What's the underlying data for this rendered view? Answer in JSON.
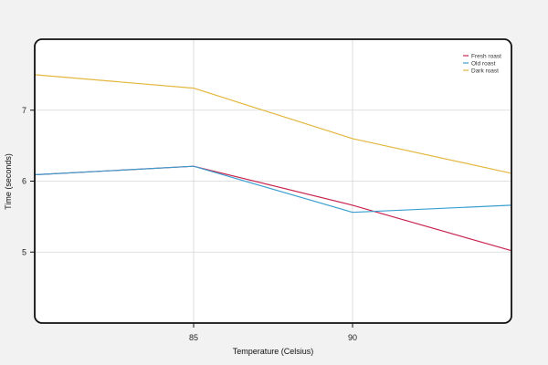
{
  "chart_data": {
    "type": "line",
    "title": "",
    "xlabel": "Temperature (Celsius)",
    "ylabel": "Time (seconds)",
    "x": [
      80,
      85,
      90,
      95
    ],
    "xlim": [
      80,
      95
    ],
    "ylim": [
      4.0,
      8.0
    ],
    "xticks": [
      85,
      90
    ],
    "yticks": [
      5,
      6,
      7
    ],
    "grid": true,
    "legend_position": "top-right",
    "series": [
      {
        "name": "Fresh roast",
        "color": "#c8264f",
        "values": [
          6.09,
          6.21,
          5.66,
          5.02
        ]
      },
      {
        "name": "Old roast",
        "color": "#3b9fd0",
        "values": [
          6.09,
          6.21,
          5.56,
          5.66
        ]
      },
      {
        "name": "Dark roast",
        "color": "#e3b73f",
        "values": [
          7.5,
          7.31,
          6.6,
          6.11
        ]
      }
    ]
  }
}
